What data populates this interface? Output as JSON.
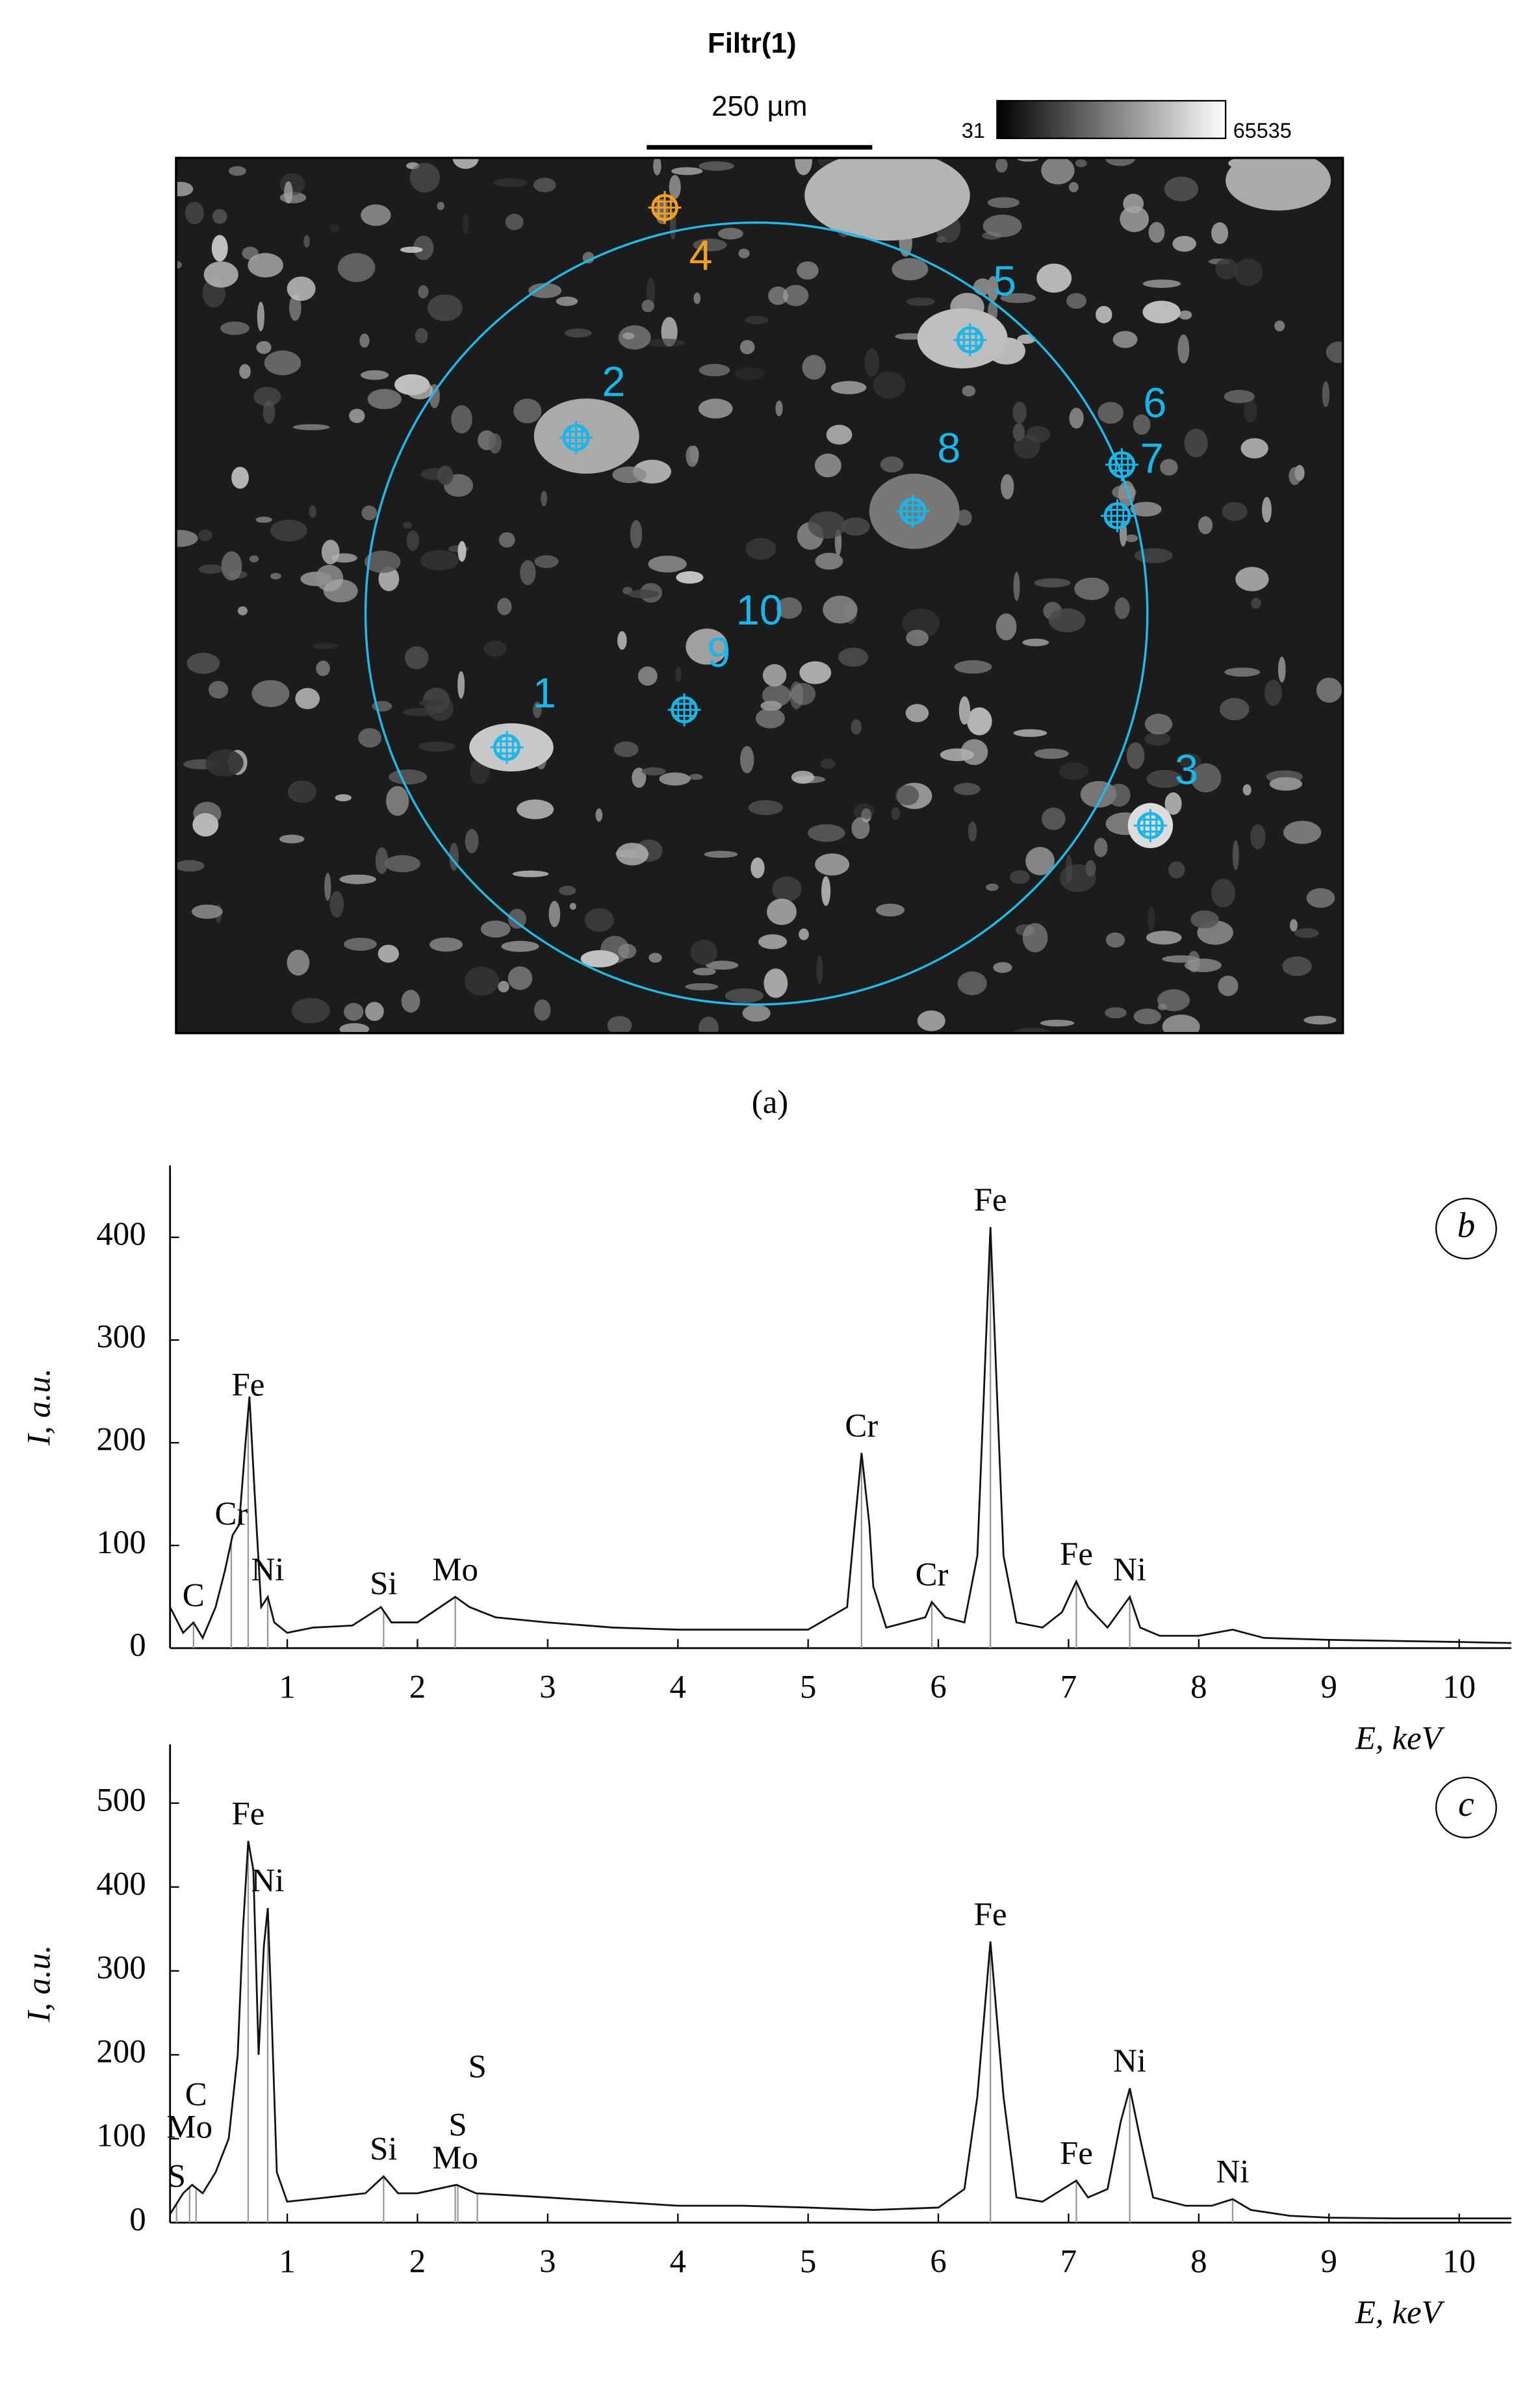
{
  "chart_data": [
    {
      "type": "image",
      "title": "Filtr(1)",
      "scale_bar_label": "250 µm",
      "colorbar_min": 31,
      "colorbar_max": 65535,
      "points": [
        {
          "label": "1",
          "color": "#1ab6ea"
        },
        {
          "label": "2",
          "color": "#1ab6ea"
        },
        {
          "label": "3",
          "color": "#1ab6ea"
        },
        {
          "label": "4",
          "color": "#f0a020"
        },
        {
          "label": "5",
          "color": "#1ab6ea"
        },
        {
          "label": "6",
          "color": "#1ab6ea"
        },
        {
          "label": "7",
          "color": "#1ab6ea"
        },
        {
          "label": "8",
          "color": "#1ab6ea"
        },
        {
          "label": "9",
          "color": "#1ab6ea"
        },
        {
          "label": "10",
          "color": "#1ab6ea"
        }
      ],
      "caption": "(a)"
    },
    {
      "type": "line",
      "panel": "b",
      "x_label": "E, keV",
      "y_label": "I, a.u.",
      "xlim": [
        0.1,
        10.4
      ],
      "ylim": [
        0,
        470
      ],
      "xticks": [
        1,
        2,
        3,
        4,
        5,
        6,
        7,
        8,
        9,
        10
      ],
      "yticks": [
        0,
        100,
        200,
        300,
        400
      ],
      "x": [
        0.1,
        0.2,
        0.28,
        0.35,
        0.45,
        0.52,
        0.58,
        0.63,
        0.68,
        0.71,
        0.75,
        0.8,
        0.85,
        0.9,
        1.0,
        1.2,
        1.5,
        1.72,
        1.8,
        2.0,
        2.29,
        2.4,
        2.6,
        3.0,
        3.5,
        4.0,
        4.5,
        5.0,
        5.3,
        5.35,
        5.41,
        5.47,
        5.5,
        5.6,
        5.9,
        5.95,
        6.05,
        6.2,
        6.3,
        6.35,
        6.4,
        6.45,
        6.5,
        6.6,
        6.8,
        6.95,
        7.06,
        7.15,
        7.3,
        7.47,
        7.55,
        7.7,
        8.0,
        8.26,
        8.5,
        9.0,
        9.5,
        10.0,
        10.4
      ],
      "series": [
        {
          "color": "#111111",
          "values": [
            40,
            15,
            25,
            10,
            40,
            75,
            110,
            120,
            200,
            245,
            150,
            40,
            50,
            25,
            15,
            20,
            22,
            40,
            25,
            25,
            50,
            40,
            30,
            25,
            20,
            18,
            18,
            18,
            40,
            110,
            190,
            120,
            60,
            20,
            30,
            45,
            30,
            25,
            90,
            250,
            410,
            250,
            90,
            25,
            20,
            35,
            65,
            40,
            20,
            50,
            20,
            12,
            12,
            18,
            10,
            8,
            7,
            6,
            5
          ]
        }
      ],
      "peaks": [
        {
          "label": "C",
          "energy": 0.28
        },
        {
          "label": "Cr",
          "energy": 0.57
        },
        {
          "label": "Fe",
          "energy": 0.7
        },
        {
          "label": "Ni",
          "energy": 0.85
        },
        {
          "label": "Si",
          "energy": 1.74
        },
        {
          "label": "Mo",
          "energy": 2.29
        },
        {
          "label": "Cr",
          "energy": 5.41
        },
        {
          "label": "Cr",
          "energy": 5.95
        },
        {
          "label": "Fe",
          "energy": 6.4
        },
        {
          "label": "Fe",
          "energy": 7.06
        },
        {
          "label": "Ni",
          "energy": 7.47
        }
      ]
    },
    {
      "type": "line",
      "panel": "c",
      "x_label": "E, keV",
      "y_label": "I, a.u.",
      "xlim": [
        0.1,
        10.4
      ],
      "ylim": [
        0,
        570
      ],
      "xticks": [
        1,
        2,
        3,
        4,
        5,
        6,
        7,
        8,
        9,
        10
      ],
      "yticks": [
        0,
        100,
        200,
        300,
        400,
        500
      ],
      "x": [
        0.1,
        0.2,
        0.27,
        0.35,
        0.45,
        0.55,
        0.62,
        0.66,
        0.7,
        0.74,
        0.78,
        0.82,
        0.85,
        0.88,
        0.92,
        1.0,
        1.3,
        1.6,
        1.74,
        1.85,
        2.0,
        2.3,
        2.45,
        3.0,
        3.5,
        4.0,
        4.5,
        5.0,
        5.5,
        6.0,
        6.2,
        6.3,
        6.4,
        6.5,
        6.6,
        6.8,
        7.06,
        7.15,
        7.3,
        7.4,
        7.47,
        7.55,
        7.65,
        7.9,
        8.1,
        8.26,
        8.4,
        8.7,
        9.0,
        9.5,
        10.0,
        10.4
      ],
      "series": [
        {
          "color": "#111111",
          "values": [
            10,
            35,
            45,
            35,
            60,
            100,
            200,
            350,
            455,
            420,
            200,
            330,
            375,
            250,
            60,
            25,
            30,
            35,
            55,
            35,
            35,
            45,
            35,
            30,
            25,
            20,
            20,
            18,
            15,
            18,
            40,
            150,
            335,
            150,
            30,
            25,
            50,
            30,
            40,
            120,
            160,
            100,
            30,
            20,
            20,
            28,
            15,
            8,
            6,
            5,
            5,
            5
          ]
        }
      ],
      "peaks": [
        {
          "label": "S",
          "energy": 0.15
        },
        {
          "label": "Mo",
          "energy": 0.25
        },
        {
          "label": "C",
          "energy": 0.3
        },
        {
          "label": "Fe",
          "energy": 0.7
        },
        {
          "label": "Ni",
          "energy": 0.85
        },
        {
          "label": "Si",
          "energy": 1.74
        },
        {
          "label": "Mo",
          "energy": 2.29
        },
        {
          "label": "S",
          "energy": 2.31
        },
        {
          "label": "S",
          "energy": 2.46
        },
        {
          "label": "Fe",
          "energy": 6.4
        },
        {
          "label": "Fe",
          "energy": 7.06
        },
        {
          "label": "Ni",
          "energy": 7.47
        },
        {
          "label": "Ni",
          "energy": 8.26
        }
      ]
    }
  ]
}
